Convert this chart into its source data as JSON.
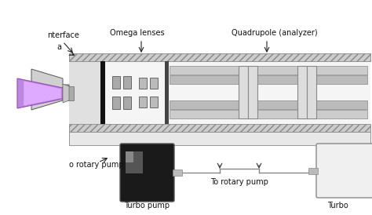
{
  "bg_color": "#ffffff",
  "labels": {
    "interface": "nterface",
    "a_label": "a",
    "omega": "Omega lenses",
    "quadrupole": "Quadrupole (analyzer)",
    "to_rotary1": "o rotary pump",
    "turbo1": "Turbo pump",
    "to_rotary2": "To rotary pump",
    "turbo2": "Turbo"
  },
  "colors": {
    "wall_face": "#cccccc",
    "wall_edge": "#888888",
    "interior": "#f5f5f5",
    "black_bar": "#111111",
    "rod": "#bbbbbb",
    "rod_edge": "#888888",
    "lens_face": "#aaaaaa",
    "lens_edge": "#666666",
    "cone_face": "#c0c0c0",
    "cone_edge": "#555555",
    "purple_outer": "#bb88dd",
    "purple_inner": "#ddaaff",
    "turbo1_dark": "#222222",
    "turbo1_mid": "#555555",
    "turbo2_face": "#f0f0f0",
    "connector": "#bbbbbb",
    "pipe": "#888888",
    "text": "#111111",
    "arrow": "#222222"
  }
}
